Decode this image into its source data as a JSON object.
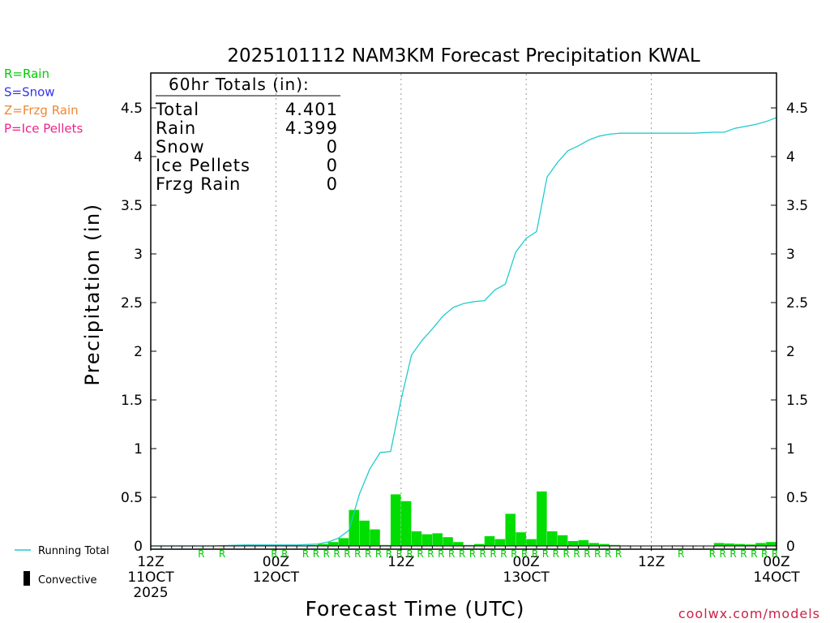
{
  "chart_data": {
    "type": "bar",
    "title": "2025101112 NAM3KM Forecast Precipitation KWAL",
    "xlabel": "Forecast Time (UTC)",
    "ylabel": "Precipitation (in)",
    "ylim": [
      0,
      4.8
    ],
    "xlim_hours": [
      0,
      60
    ],
    "yticks": [
      0,
      0.5,
      1,
      1.5,
      2,
      2.5,
      3,
      3.5,
      4,
      4.5
    ],
    "ytick_labels": [
      "0",
      "0.5",
      "1",
      "1.5",
      "2",
      "2.5",
      "3",
      "3.5",
      "4",
      "4.5"
    ],
    "xticks": [
      {
        "hour": 0,
        "lines": [
          "12Z",
          "11OCT",
          "2025"
        ]
      },
      {
        "hour": 12,
        "lines": [
          "00Z",
          "12OCT"
        ]
      },
      {
        "hour": 24,
        "lines": [
          "12Z"
        ]
      },
      {
        "hour": 36,
        "lines": [
          "00Z",
          "13OCT"
        ]
      },
      {
        "hour": 48,
        "lines": [
          "12Z"
        ]
      },
      {
        "hour": 60,
        "lines": [
          "00Z",
          "14OCT"
        ]
      }
    ],
    "grid_hours": [
      12,
      24,
      36,
      48
    ],
    "legend": {
      "types": [
        {
          "label": "R=Rain",
          "color": "#00cc00"
        },
        {
          "label": "S=Snow",
          "color": "#3333ee"
        },
        {
          "label": "Z=Frzg Rain",
          "color": "#ee8833"
        },
        {
          "label": "P=Ice Pellets",
          "color": "#ee2288"
        }
      ],
      "running_total": "Running Total",
      "convective": "Convective"
    },
    "totals": {
      "header": "60hr Totals (in):",
      "rows": [
        {
          "label": "Total",
          "value": "4.401"
        },
        {
          "label": "Rain",
          "value": "4.399"
        },
        {
          "label": "Snow",
          "value": "0"
        },
        {
          "label": "Ice Pellets",
          "value": "0"
        },
        {
          "label": "Frzg Rain",
          "value": "0"
        }
      ]
    },
    "credit": "coolwx.com/models",
    "colors": {
      "bar": "#00dd00",
      "line": "#22cccc",
      "rain_marker": "#00cc00"
    },
    "rain_marker_hours": [
      5,
      7,
      12,
      13,
      15,
      16,
      17,
      18,
      19,
      20,
      21,
      22,
      23,
      24,
      25,
      26,
      27,
      28,
      29,
      30,
      31,
      32,
      33,
      34,
      35,
      36,
      37,
      38,
      39,
      40,
      41,
      42,
      43,
      44,
      45,
      51,
      54,
      55,
      56,
      57,
      58,
      59,
      60
    ],
    "series": [
      {
        "name": "Hourly Precipitation",
        "type": "bar",
        "bars": [
          {
            "hour": 15,
            "value": 0.005
          },
          {
            "hour": 16,
            "value": 0.01
          },
          {
            "hour": 17,
            "value": 0.02
          },
          {
            "hour": 18,
            "value": 0.04
          },
          {
            "hour": 19,
            "value": 0.08
          },
          {
            "hour": 20,
            "value": 0.37
          },
          {
            "hour": 21,
            "value": 0.26
          },
          {
            "hour": 22,
            "value": 0.17
          },
          {
            "hour": 23,
            "value": 0.01
          },
          {
            "hour": 24,
            "value": 0.53
          },
          {
            "hour": 25,
            "value": 0.46
          },
          {
            "hour": 26,
            "value": 0.15
          },
          {
            "hour": 27,
            "value": 0.12
          },
          {
            "hour": 28,
            "value": 0.13
          },
          {
            "hour": 29,
            "value": 0.09
          },
          {
            "hour": 30,
            "value": 0.04
          },
          {
            "hour": 31,
            "value": 0.01
          },
          {
            "hour": 32,
            "value": 0.02
          },
          {
            "hour": 33,
            "value": 0.1
          },
          {
            "hour": 34,
            "value": 0.07
          },
          {
            "hour": 35,
            "value": 0.33
          },
          {
            "hour": 36,
            "value": 0.14
          },
          {
            "hour": 37,
            "value": 0.07
          },
          {
            "hour": 38,
            "value": 0.56
          },
          {
            "hour": 39,
            "value": 0.15
          },
          {
            "hour": 40,
            "value": 0.11
          },
          {
            "hour": 41,
            "value": 0.05
          },
          {
            "hour": 42,
            "value": 0.06
          },
          {
            "hour": 43,
            "value": 0.03
          },
          {
            "hour": 44,
            "value": 0.02
          },
          {
            "hour": 45,
            "value": 0.01
          },
          {
            "hour": 46,
            "value": 0.005
          },
          {
            "hour": 51,
            "value": 0.005
          },
          {
            "hour": 55,
            "value": 0.03
          },
          {
            "hour": 56,
            "value": 0.025
          },
          {
            "hour": 57,
            "value": 0.02
          },
          {
            "hour": 58,
            "value": 0.015
          },
          {
            "hour": 59,
            "value": 0.03
          },
          {
            "hour": 60,
            "value": 0.04
          }
        ]
      },
      {
        "name": "Running Total",
        "type": "line",
        "x": [
          0,
          3,
          6,
          9,
          12,
          14,
          16,
          17,
          18,
          19,
          20,
          21,
          22,
          23,
          24,
          25,
          26,
          27,
          28,
          29,
          30,
          31,
          32,
          33,
          34,
          35,
          36,
          37,
          38,
          39,
          40,
          41,
          42,
          43,
          44,
          45,
          46,
          48,
          50,
          52,
          54,
          55,
          56,
          57,
          58,
          59,
          60
        ],
        "y": [
          0.0,
          0.0,
          0.0,
          0.01,
          0.01,
          0.01,
          0.02,
          0.04,
          0.08,
          0.16,
          0.53,
          0.79,
          0.96,
          0.97,
          1.5,
          1.96,
          2.11,
          2.23,
          2.36,
          2.45,
          2.49,
          2.51,
          2.52,
          2.63,
          2.69,
          3.02,
          3.16,
          3.23,
          3.79,
          3.94,
          4.06,
          4.11,
          4.17,
          4.21,
          4.23,
          4.24,
          4.24,
          4.24,
          4.24,
          4.24,
          4.25,
          4.25,
          4.29,
          4.31,
          4.33,
          4.36,
          4.4
        ]
      }
    ]
  }
}
